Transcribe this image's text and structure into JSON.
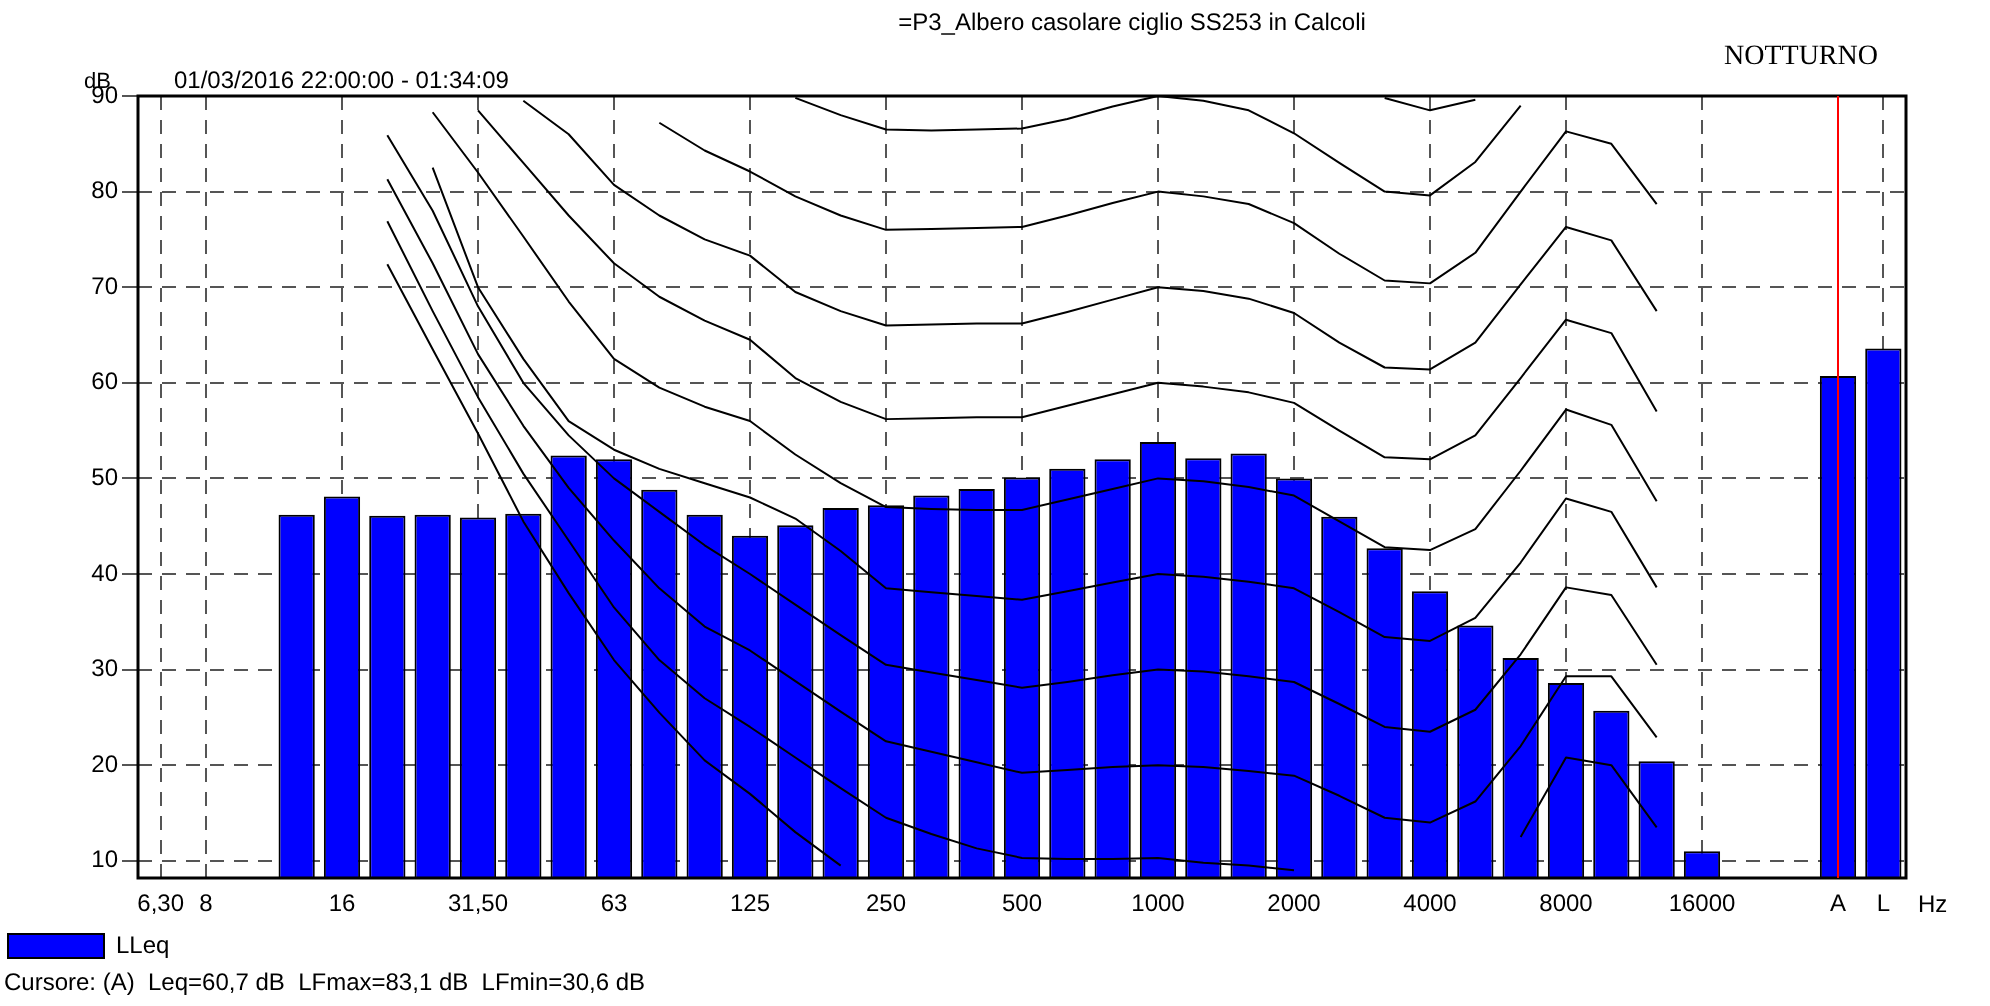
{
  "chart_data": {
    "type": "bar",
    "title": "=P3_Albero casolare ciglio SS253 in Calcoli",
    "subtitle": "01/03/2016 22:00:00 - 01:34:09",
    "ylabel": "dB",
    "xlabel": "Hz",
    "annotations": [
      "NOTTURNO",
      "Cursore: (A)  Leq=60,7 dB  LFmax=83,1 dB  LFmin=30,6 dB"
    ],
    "categories": [
      "6,30",
      "8",
      null,
      null,
      "16",
      null,
      null,
      "31,50",
      null,
      null,
      "63",
      null,
      null,
      "125",
      null,
      null,
      "250",
      null,
      null,
      "500",
      null,
      null,
      "1000",
      null,
      null,
      "2000",
      null,
      null,
      "4000",
      null,
      null,
      "8000",
      null,
      null,
      "16000",
      null,
      null,
      "A",
      "L"
    ],
    "series": [
      {
        "name": "LLeq",
        "color": "#0000ff",
        "values": [
          null,
          null,
          null,
          46.2,
          48.1,
          46.1,
          46.2,
          45.9,
          46.3,
          52.4,
          52.0,
          48.8,
          46.2,
          44.0,
          45.1,
          46.9,
          47.2,
          48.2,
          48.9,
          50.1,
          51.0,
          52.0,
          53.8,
          52.1,
          52.6,
          50.0,
          46.0,
          42.7,
          38.2,
          34.6,
          31.2,
          28.6,
          25.7,
          20.4,
          11.0,
          null,
          null,
          60.7,
          63.6
        ]
      },
      {
        "type": "line",
        "color": "#000000",
        "values": [
          null,
          null,
          null,
          null,
          null,
          72.4,
          63.5,
          54.7,
          45.5,
          38,
          31,
          25.5,
          20.5,
          17,
          13,
          9.5,
          null,
          null,
          null,
          null,
          null,
          null,
          null,
          null,
          null,
          null,
          null,
          null,
          null,
          null,
          null,
          null,
          null,
          null,
          null,
          null,
          null,
          null,
          null
        ]
      },
      {
        "type": "line",
        "color": "#000000",
        "values": [
          null,
          null,
          null,
          null,
          null,
          76.9,
          67.5,
          58.5,
          50.5,
          43.5,
          36.5,
          31,
          27,
          24,
          20.8,
          17.6,
          14.5,
          12.8,
          11.3,
          10.3,
          10.2,
          10.2,
          10.3,
          9.8,
          9.5,
          9.0,
          null,
          null,
          null,
          null,
          12.5,
          20.8,
          20,
          13.5,
          null,
          null,
          null,
          null,
          null
        ]
      },
      {
        "type": "line",
        "color": "#000000",
        "values": [
          null,
          null,
          null,
          null,
          null,
          81.3,
          72.5,
          63,
          55.5,
          49,
          43.5,
          38.5,
          34.5,
          32,
          28.8,
          25.6,
          22.5,
          21.4,
          20.3,
          19.2,
          19.5,
          19.8,
          20,
          19.8,
          19.4,
          18.9,
          16.8,
          14.5,
          14,
          16.2,
          22,
          29.3,
          29.3,
          22.9,
          null,
          null,
          null,
          null,
          null
        ]
      },
      {
        "type": "line",
        "color": "#000000",
        "values": [
          null,
          null,
          null,
          null,
          null,
          85.9,
          78,
          68,
          60,
          54.5,
          50,
          46.5,
          43,
          40,
          36.8,
          33.6,
          30.5,
          29.7,
          28.9,
          28.1,
          28.7,
          29.4,
          30,
          29.8,
          29.3,
          28.7,
          26.4,
          24,
          23.5,
          25.8,
          31.6,
          38.6,
          37.8,
          30.5,
          null,
          null,
          null,
          null,
          null
        ]
      },
      {
        "type": "line",
        "color": "#000000",
        "values": [
          null,
          null,
          null,
          null,
          null,
          null,
          82.5,
          70,
          62.5,
          56,
          53,
          51,
          49.5,
          48,
          45.8,
          42.4,
          38.5,
          38.1,
          37.7,
          37.3,
          38.2,
          39.1,
          40,
          39.7,
          39.2,
          38.5,
          36,
          33.4,
          33,
          35.4,
          41.2,
          47.9,
          46.5,
          38.6,
          null,
          null,
          null,
          null,
          null
        ]
      },
      {
        "type": "line",
        "color": "#000000",
        "values": [
          null,
          null,
          null,
          null,
          null,
          null,
          88.3,
          82,
          75.3,
          68.5,
          62.5,
          59.5,
          57.5,
          56,
          52.5,
          49.5,
          47,
          46.8,
          46.7,
          46.7,
          47.8,
          48.9,
          50,
          49.7,
          49.1,
          48.2,
          45.5,
          42.8,
          42.5,
          44.7,
          50.8,
          57.2,
          55.6,
          47.6,
          null,
          null,
          null,
          null,
          null
        ]
      },
      {
        "type": "line",
        "color": "#000000",
        "values": [
          null,
          null,
          null,
          null,
          null,
          null,
          null,
          88.5,
          83,
          77.5,
          72.5,
          69,
          66.5,
          64.5,
          60.5,
          58,
          56.2,
          56.3,
          56.4,
          56.4,
          57.6,
          58.8,
          60,
          59.6,
          59,
          57.9,
          55,
          52.2,
          52,
          54.5,
          60.5,
          66.6,
          65.2,
          57,
          null,
          null,
          null,
          null,
          null
        ]
      },
      {
        "type": "line",
        "color": "#000000",
        "values": [
          null,
          null,
          null,
          null,
          null,
          null,
          null,
          null,
          89.5,
          86,
          80.7,
          77.5,
          75,
          73.3,
          69.5,
          67.5,
          66,
          66.1,
          66.2,
          66.2,
          67.4,
          68.7,
          70,
          69.6,
          68.8,
          67.3,
          64.2,
          61.6,
          61.4,
          64.2,
          70.3,
          76.3,
          74.9,
          67.5,
          null,
          null,
          null,
          null,
          null
        ]
      },
      {
        "type": "line",
        "color": "#000000",
        "values": [
          null,
          null,
          null,
          null,
          null,
          null,
          null,
          null,
          null,
          null,
          null,
          87.2,
          84.3,
          82.1,
          79.5,
          77.5,
          76,
          76.1,
          76.2,
          76.3,
          77.5,
          78.8,
          80,
          79.5,
          78.7,
          76.7,
          73.5,
          70.7,
          70.4,
          73.6,
          80,
          86.3,
          85,
          78.7,
          null,
          null,
          null,
          null,
          null
        ]
      },
      {
        "type": "line",
        "color": "#000000",
        "values": [
          null,
          null,
          null,
          null,
          null,
          null,
          null,
          null,
          null,
          null,
          null,
          null,
          null,
          null,
          89.8,
          88,
          86.5,
          86.4,
          86.5,
          86.6,
          87.6,
          88.9,
          90,
          89.5,
          88.5,
          86.1,
          83,
          80,
          79.6,
          83.1,
          89,
          null,
          null,
          null,
          null,
          null,
          null,
          null,
          null
        ]
      },
      {
        "type": "line",
        "color": "#000000",
        "values": [
          null,
          null,
          null,
          null,
          null,
          null,
          null,
          null,
          null,
          null,
          null,
          null,
          null,
          null,
          null,
          null,
          null,
          null,
          null,
          null,
          null,
          null,
          null,
          null,
          null,
          null,
          null,
          89.8,
          88.5,
          89.6,
          null,
          null,
          null,
          null,
          null,
          null,
          null,
          null,
          null
        ]
      }
    ],
    "ylim": [
      8.2,
      90
    ],
    "yticks": [
      10,
      20,
      30,
      40,
      50,
      60,
      70,
      80,
      90
    ],
    "grid": true,
    "legend": "bottom left",
    "marker": "none",
    "line_style": "solid",
    "ref_lines": [
      {
        "axis": "x",
        "value": "A",
        "color": "#ff0000"
      }
    ]
  }
}
